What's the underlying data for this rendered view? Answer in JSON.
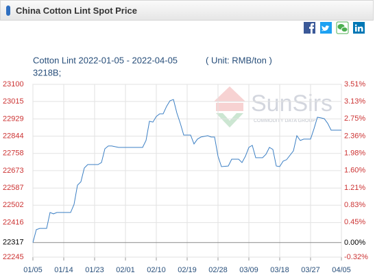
{
  "header": {
    "title": "China Cotton Lint Spot Price"
  },
  "watermark": {
    "brand": "SunSirs",
    "tagline": "COMMODITY DATA GROUP"
  },
  "chart_data": {
    "type": "line",
    "title": "Cotton Lint 2022-01-05 - 2022-04-05",
    "unit_label": "( Unit: RMB/ton )",
    "subtitle": "3218B;",
    "x": [
      0,
      1,
      2,
      4,
      5,
      6,
      7,
      11,
      12,
      13,
      14,
      15,
      16,
      18,
      19,
      20,
      21,
      22,
      23,
      25,
      32,
      33,
      34,
      35,
      36,
      37,
      38,
      39,
      40,
      41,
      42,
      43,
      44,
      46,
      47,
      48,
      49,
      51,
      52,
      53,
      54,
      55,
      57,
      58,
      60,
      61,
      62,
      63,
      64,
      65,
      67,
      68,
      69,
      70,
      71,
      72,
      73,
      74,
      76,
      77,
      78,
      79,
      81,
      82,
      83,
      84,
      85,
      86,
      87,
      90
    ],
    "series": [
      {
        "name": "Cotton Lint",
        "color": "#3b7fc4",
        "values": [
          22317,
          22381,
          22387,
          22387,
          22466,
          22459,
          22466,
          22466,
          22506,
          22601,
          22618,
          22686,
          22703,
          22703,
          22703,
          22713,
          22781,
          22795,
          22795,
          22788,
          22788,
          22822,
          22917,
          22913,
          22941,
          22954,
          22954,
          22991,
          23019,
          23025,
          22958,
          22907,
          22849,
          22849,
          22805,
          22829,
          22839,
          22846,
          22839,
          22839,
          22744,
          22693,
          22696,
          22730,
          22730,
          22713,
          22744,
          22788,
          22798,
          22737,
          22737,
          22754,
          22788,
          22778,
          22696,
          22693,
          22720,
          22727,
          22771,
          22846,
          22822,
          22829,
          22829,
          22880,
          22937,
          22934,
          22930,
          22907,
          22873,
          22873
        ]
      }
    ],
    "xlim": [
      0,
      90
    ],
    "xticks": [
      {
        "value": 0,
        "label": "01/05"
      },
      {
        "value": 9,
        "label": "01/14"
      },
      {
        "value": 18,
        "label": "01/23"
      },
      {
        "value": 27,
        "label": "02/01"
      },
      {
        "value": 36,
        "label": "02/10"
      },
      {
        "value": 45,
        "label": "02/19"
      },
      {
        "value": 54,
        "label": "02/28"
      },
      {
        "value": 63,
        "label": "03/09"
      },
      {
        "value": 72,
        "label": "03/18"
      },
      {
        "value": 81,
        "label": "03/27"
      },
      {
        "value": 90,
        "label": "04/05"
      }
    ],
    "ylim": [
      22245,
      23100
    ],
    "yticks": [
      23100,
      23015,
      22929,
      22844,
      22758,
      22673,
      22587,
      22502,
      22416,
      22317,
      22245
    ],
    "y2lim": [
      -0.32,
      3.51
    ],
    "y2ticks": [
      {
        "value": 3.51,
        "label": "3.51%"
      },
      {
        "value": 3.13,
        "label": "3.13%"
      },
      {
        "value": 2.75,
        "label": "2.75%"
      },
      {
        "value": 2.36,
        "label": "2.36%"
      },
      {
        "value": 1.98,
        "label": "1.98%"
      },
      {
        "value": 1.6,
        "label": "1.60%"
      },
      {
        "value": 1.21,
        "label": "1.21%"
      },
      {
        "value": 0.83,
        "label": "0.83%"
      },
      {
        "value": 0.45,
        "label": "0.45%"
      },
      {
        "value": 0,
        "label": "0.00%"
      },
      {
        "value": -0.32,
        "label": "-0.32%"
      }
    ],
    "baseline": 22317,
    "grid": true,
    "tick_color": "#cc3333"
  }
}
